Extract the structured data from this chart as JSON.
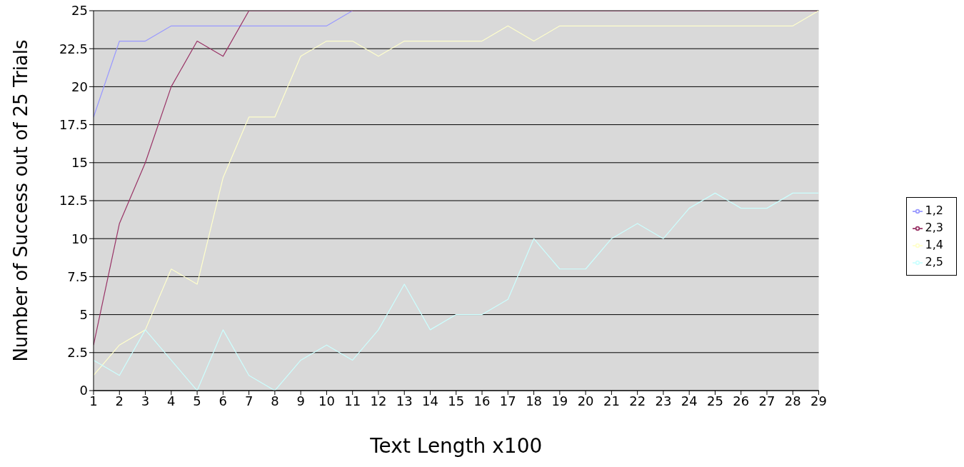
{
  "chart_data": {
    "type": "line",
    "xlabel": "Text Length x100",
    "ylabel": "Number of Success out of 25 Trials",
    "x": [
      1,
      2,
      3,
      4,
      5,
      6,
      7,
      8,
      9,
      10,
      11,
      12,
      13,
      14,
      15,
      16,
      17,
      18,
      19,
      20,
      21,
      22,
      23,
      24,
      25,
      26,
      27,
      28,
      29
    ],
    "xlim": [
      1,
      29
    ],
    "xticks": [
      1,
      2,
      3,
      4,
      5,
      6,
      7,
      8,
      9,
      10,
      11,
      12,
      13,
      14,
      15,
      16,
      17,
      18,
      19,
      20,
      21,
      22,
      23,
      24,
      25,
      26,
      27,
      28,
      29
    ],
    "ylim": [
      0,
      25
    ],
    "yticks": [
      0,
      2.5,
      5,
      7.5,
      10,
      12.5,
      15,
      17.5,
      20,
      22.5,
      25
    ],
    "grid": "y",
    "legend": "right",
    "marker": "none",
    "series": [
      {
        "name": "1,2",
        "color": "#9999ff",
        "values": [
          18,
          23,
          23,
          24,
          24,
          24,
          24,
          24,
          24,
          24,
          25,
          null,
          null,
          null,
          null,
          null,
          null,
          null,
          null,
          null,
          null,
          null,
          null,
          null,
          null,
          null,
          null,
          null,
          null
        ]
      },
      {
        "name": "2,3",
        "color": "#993366",
        "values": [
          3,
          11,
          15,
          20,
          23,
          22,
          25,
          25,
          25,
          25,
          25,
          25,
          25,
          25,
          25,
          25,
          25,
          25,
          25,
          25,
          25,
          25,
          25,
          25,
          25,
          25,
          25,
          25,
          25
        ]
      },
      {
        "name": "1,4",
        "color": "#ffffcc",
        "values": [
          1,
          3,
          4,
          8,
          7,
          14,
          18,
          18,
          22,
          23,
          23,
          22,
          23,
          23,
          23,
          23,
          24,
          23,
          24,
          24,
          24,
          24,
          24,
          24,
          24,
          24,
          24,
          24,
          25
        ]
      },
      {
        "name": "2,5",
        "color": "#ccffff",
        "values": [
          2,
          1,
          4,
          2,
          0,
          4,
          1,
          0,
          2,
          3,
          2,
          4,
          7,
          4,
          5,
          5,
          6,
          10,
          8,
          8,
          10,
          11,
          10,
          12,
          13,
          12,
          12,
          13,
          13
        ]
      }
    ]
  }
}
